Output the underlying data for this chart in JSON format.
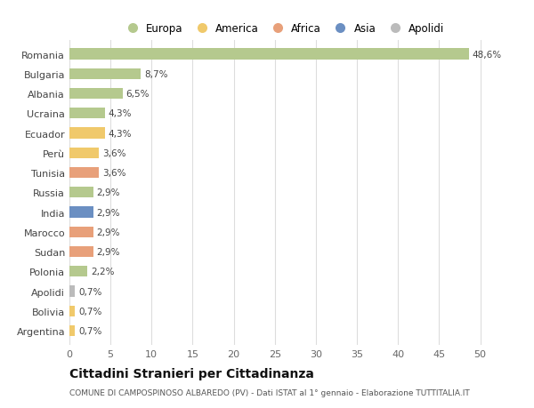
{
  "categories": [
    "Romania",
    "Bulgaria",
    "Albania",
    "Ucraina",
    "Ecuador",
    "Perù",
    "Tunisia",
    "Russia",
    "India",
    "Marocco",
    "Sudan",
    "Polonia",
    "Apolidi",
    "Bolivia",
    "Argentina"
  ],
  "values": [
    48.6,
    8.7,
    6.5,
    4.3,
    4.3,
    3.6,
    3.6,
    2.9,
    2.9,
    2.9,
    2.9,
    2.2,
    0.7,
    0.7,
    0.7
  ],
  "labels": [
    "48,6%",
    "8,7%",
    "6,5%",
    "4,3%",
    "4,3%",
    "3,6%",
    "3,6%",
    "2,9%",
    "2,9%",
    "2,9%",
    "2,9%",
    "2,2%",
    "0,7%",
    "0,7%",
    "0,7%"
  ],
  "colors": [
    "#b5c98e",
    "#b5c98e",
    "#b5c98e",
    "#b5c98e",
    "#f0c96b",
    "#f0c96b",
    "#e8a07a",
    "#b5c98e",
    "#6b8fc2",
    "#e8a07a",
    "#e8a07a",
    "#b5c98e",
    "#bbbbbb",
    "#f0c96b",
    "#f0c96b"
  ],
  "legend_labels": [
    "Europa",
    "America",
    "Africa",
    "Asia",
    "Apolidi"
  ],
  "legend_colors": [
    "#b5c98e",
    "#f0c96b",
    "#e8a07a",
    "#6b8fc2",
    "#bbbbbb"
  ],
  "title": "Cittadini Stranieri per Cittadinanza",
  "subtitle": "COMUNE DI CAMPOSPINOSO ALBAREDO (PV) - Dati ISTAT al 1° gennaio - Elaborazione TUTTITALIA.IT",
  "xlim": [
    0,
    52
  ],
  "xticks": [
    0,
    5,
    10,
    15,
    20,
    25,
    30,
    35,
    40,
    45,
    50
  ],
  "background_color": "#ffffff",
  "grid_color": "#dddddd",
  "bar_height": 0.55
}
